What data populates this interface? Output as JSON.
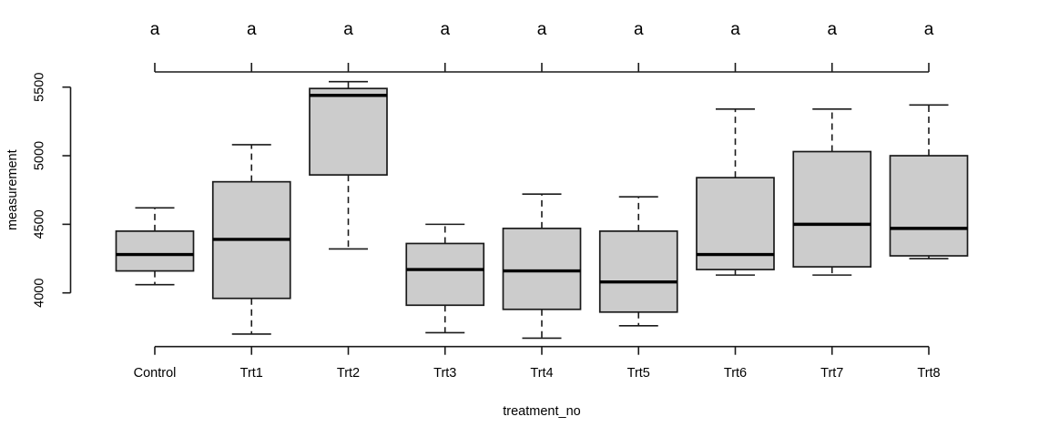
{
  "chart_data": {
    "type": "boxplot",
    "title": "",
    "xlabel": "treatment_no",
    "ylabel": "measurement",
    "categories": [
      "Control",
      "Trt1",
      "Trt2",
      "Trt3",
      "Trt4",
      "Trt5",
      "Trt6",
      "Trt7",
      "Trt8"
    ],
    "top_axis_labels": [
      "a",
      "a",
      "a",
      "a",
      "a",
      "a",
      "a",
      "a",
      "a"
    ],
    "y_ticks": [
      4000,
      4500,
      5000,
      5500
    ],
    "ylim": [
      4000,
      5500
    ],
    "grid": "off",
    "legend": "none",
    "series": [
      {
        "name": "Control",
        "whisker_low": 4060,
        "q1": 4160,
        "median": 4280,
        "q3": 4450,
        "whisker_high": 4620
      },
      {
        "name": "Trt1",
        "whisker_low": 3700,
        "q1": 3960,
        "median": 4390,
        "q3": 4810,
        "whisker_high": 5080
      },
      {
        "name": "Trt2",
        "whisker_low": 4320,
        "q1": 4860,
        "median": 5440,
        "q3": 5490,
        "whisker_high": 5540
      },
      {
        "name": "Trt3",
        "whisker_low": 3710,
        "q1": 3910,
        "median": 4170,
        "q3": 4360,
        "whisker_high": 4500
      },
      {
        "name": "Trt4",
        "whisker_low": 3670,
        "q1": 3880,
        "median": 4160,
        "q3": 4470,
        "whisker_high": 4720
      },
      {
        "name": "Trt5",
        "whisker_low": 3760,
        "q1": 3860,
        "median": 4080,
        "q3": 4450,
        "whisker_high": 4700
      },
      {
        "name": "Trt6",
        "whisker_low": 4130,
        "q1": 4170,
        "median": 4280,
        "q3": 4840,
        "whisker_high": 5340
      },
      {
        "name": "Trt7",
        "whisker_low": 4130,
        "q1": 4190,
        "median": 4500,
        "q3": 5030,
        "whisker_high": 5340
      },
      {
        "name": "Trt8",
        "whisker_low": 4250,
        "q1": 4270,
        "median": 4470,
        "q3": 5000,
        "whisker_high": 5370
      }
    ],
    "colors": {
      "background": "#ffffff",
      "box_fill": "#cccccc",
      "box_border": "#1a1a1a",
      "median": "#000000",
      "whisker": "#1a1a1a",
      "axis": "#1a1a1a",
      "text": "#000000"
    }
  }
}
